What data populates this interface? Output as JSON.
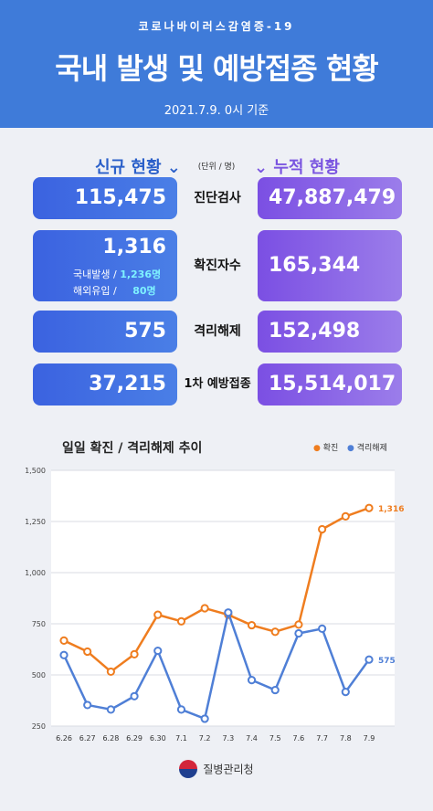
{
  "header": {
    "supertitle": "코로나바이러스감염증-19",
    "title": "국내 발생 및 예방접종 현황",
    "date": "2021.7.9. 0시 기준"
  },
  "table": {
    "new_header": "신규 현황",
    "cum_header": "누적 현황",
    "unit": "(단위 / 명)",
    "rows": [
      {
        "label": "진단검사",
        "new": "115,475",
        "cum": "47,887,479"
      },
      {
        "label": "확진자수",
        "new": "1,316",
        "cum": "165,344",
        "detail_domestic_label": "국내발생 /",
        "detail_domestic_value": "1,236명",
        "detail_overseas_label": "해외유입 /",
        "detail_overseas_value": "80명"
      },
      {
        "label": "격리해제",
        "new": "575",
        "cum": "152,498"
      },
      {
        "label": "1차 예방접종",
        "new": "37,215",
        "cum": "15,514,017"
      }
    ]
  },
  "chart_title": "일일 확진 / 격리해제 추이",
  "footer": {
    "org": "질병관리청"
  },
  "colors": {
    "confirmed": "#ef7d1f",
    "released": "#4f7fd6"
  },
  "chart_data": {
    "type": "line",
    "title": "일일 확진 / 격리해제 추이",
    "categories": [
      "6.26",
      "6.27",
      "6.28",
      "6.29",
      "6.30",
      "7.1",
      "7.2",
      "7.3",
      "7.4",
      "7.5",
      "7.6",
      "7.7",
      "7.8",
      "7.9"
    ],
    "series": [
      {
        "name": "확진",
        "values": [
          668,
          614,
          516,
          601,
          794,
          762,
          826,
          794,
          743,
          711,
          746,
          1212,
          1275,
          1316
        ],
        "end_label": "1,316"
      },
      {
        "name": "격리해제",
        "values": [
          597,
          353,
          331,
          396,
          618,
          331,
          286,
          805,
          475,
          426,
          703,
          726,
          417,
          575
        ],
        "end_label": "575"
      }
    ],
    "yticks": [
      "1,500",
      "1,250",
      "1,000",
      "750",
      "500",
      "250"
    ],
    "ylim": [
      250,
      1500
    ],
    "grid": true,
    "legend": "top-right"
  }
}
